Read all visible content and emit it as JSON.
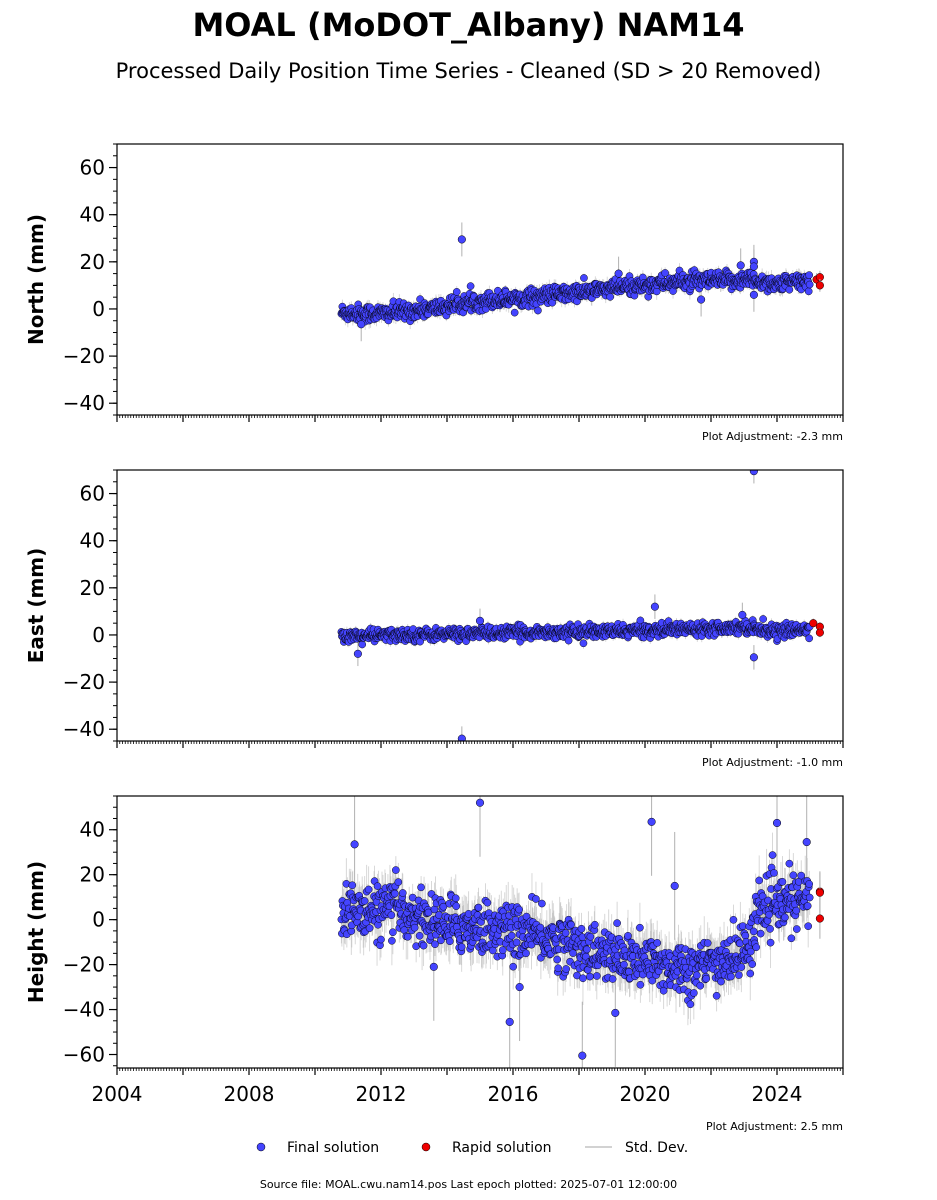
{
  "title": "MOAL (MoDOT_Albany) NAM14",
  "subtitle": "Processed Daily Position Time Series - Cleaned (SD > 20 Removed)",
  "legend": {
    "final": "Final solution",
    "rapid": "Rapid solution",
    "stddev": "Std. Dev."
  },
  "footer": "Source file: MOAL.cwu.nam14.pos  Last epoch plotted: 2025-07-01 12:00:00",
  "colors": {
    "final": "#4444ff",
    "rapid": "#ee0000",
    "stddev": "#b0b0b0",
    "edge": "#000000"
  },
  "chart_data": [
    {
      "type": "scatter",
      "ylabel": "North (mm)",
      "adjustment": "Plot Adjustment: -2.3 mm",
      "xlim": [
        2004,
        2026
      ],
      "ylim": [
        -45,
        70
      ],
      "yticks": [
        -40,
        -20,
        0,
        20,
        40,
        60
      ],
      "trend": [
        [
          2010.8,
          -1.5
        ],
        [
          2012.0,
          -2
        ],
        [
          2013.5,
          0
        ],
        [
          2015.0,
          3.5
        ],
        [
          2016.5,
          5
        ],
        [
          2018.0,
          7
        ],
        [
          2019.5,
          9.5
        ],
        [
          2021.0,
          11.5
        ],
        [
          2022.5,
          12
        ],
        [
          2023.2,
          12.5
        ],
        [
          2024.0,
          10.5
        ],
        [
          2025.0,
          12
        ]
      ],
      "noise": 1.8,
      "outliers": [
        [
          2014.45,
          29.5
        ],
        [
          2023.3,
          20
        ],
        [
          2023.3,
          18
        ],
        [
          2022.9,
          18.5
        ],
        [
          2021.7,
          4
        ],
        [
          2023.3,
          6
        ],
        [
          2011.4,
          -6.5
        ],
        [
          2019.2,
          15
        ]
      ],
      "rapid": [
        [
          2025.2,
          12.5
        ],
        [
          2025.3,
          13.5
        ],
        [
          2025.3,
          10
        ]
      ]
    },
    {
      "type": "scatter",
      "ylabel": "East (mm)",
      "adjustment": "Plot Adjustment: -1.0 mm",
      "xlim": [
        2004,
        2026
      ],
      "ylim": [
        -45,
        70
      ],
      "yticks": [
        -40,
        -20,
        0,
        20,
        40,
        60
      ],
      "trend": [
        [
          2010.8,
          -0.5
        ],
        [
          2013.0,
          0
        ],
        [
          2016.0,
          1
        ],
        [
          2019.0,
          1.5
        ],
        [
          2021.0,
          2.5
        ],
        [
          2023.0,
          3.5
        ],
        [
          2024.0,
          1.5
        ],
        [
          2025.0,
          2.5
        ]
      ],
      "noise": 1.3,
      "outliers": [
        [
          2023.3,
          69.5
        ],
        [
          2014.45,
          -44
        ],
        [
          2020.3,
          12
        ],
        [
          2022.95,
          8.5
        ],
        [
          2023.3,
          -9.5
        ],
        [
          2011.3,
          -8
        ],
        [
          2015.0,
          6
        ]
      ],
      "rapid": [
        [
          2025.1,
          5
        ],
        [
          2025.3,
          3.5
        ],
        [
          2025.3,
          1
        ]
      ]
    },
    {
      "type": "scatter",
      "ylabel": "Height (mm)",
      "adjustment": "Plot Adjustment: 2.5 mm",
      "xlim": [
        2004,
        2026
      ],
      "ylim": [
        -66,
        55
      ],
      "yticks": [
        -60,
        -40,
        -20,
        0,
        20,
        40
      ],
      "xticks": [
        2004,
        2008,
        2012,
        2016,
        2020,
        2024
      ],
      "trend": [
        [
          2010.8,
          5
        ],
        [
          2011.5,
          3
        ],
        [
          2012.5,
          5
        ],
        [
          2013.3,
          0
        ],
        [
          2014.5,
          -3
        ],
        [
          2016.0,
          -5
        ],
        [
          2017.5,
          -10
        ],
        [
          2018.5,
          -15
        ],
        [
          2019.5,
          -18
        ],
        [
          2020.5,
          -20
        ],
        [
          2021.5,
          -22
        ],
        [
          2022.5,
          -18
        ],
        [
          2023.2,
          -12
        ],
        [
          2023.4,
          5
        ],
        [
          2024.0,
          6
        ],
        [
          2025.0,
          10
        ]
      ],
      "noise": 6,
      "outliers": [
        [
          2015.0,
          52
        ],
        [
          2020.2,
          43.5
        ],
        [
          2024.0,
          43
        ],
        [
          2011.2,
          33.5
        ],
        [
          2024.9,
          34.5
        ],
        [
          2018.1,
          -60.5
        ],
        [
          2015.9,
          -45.5
        ],
        [
          2019.1,
          -41.5
        ],
        [
          2020.9,
          15
        ],
        [
          2016.2,
          -30
        ],
        [
          2013.6,
          -21
        ]
      ],
      "rapid": [
        [
          2025.3,
          12.5
        ],
        [
          2025.3,
          12
        ],
        [
          2025.3,
          0.5
        ]
      ]
    }
  ]
}
